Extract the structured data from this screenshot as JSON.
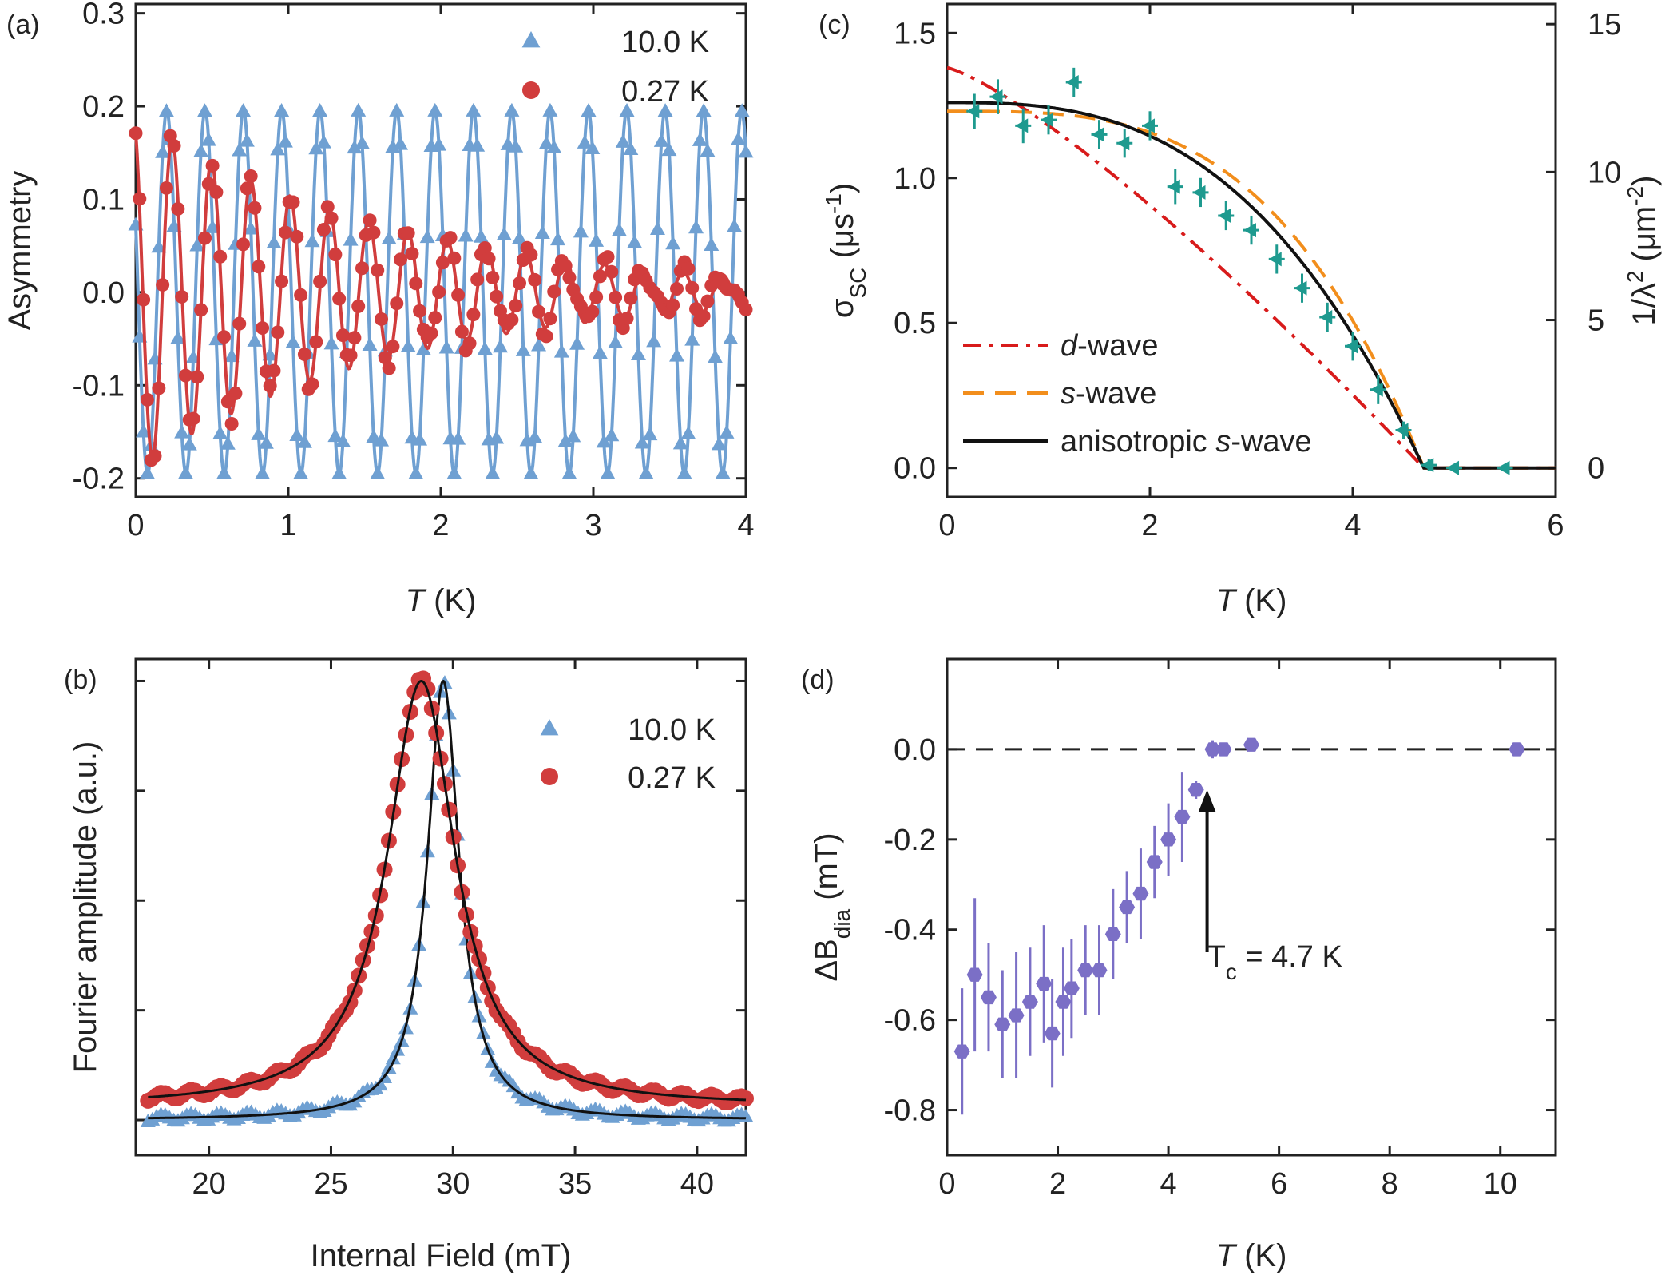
{
  "chart_data": [
    {
      "panel": "(a)",
      "type": "line",
      "xlabel_var": "T",
      "xlabel_unit": " (K)",
      "ylabel": "Asymmetry",
      "xlim": [
        0,
        4
      ],
      "ylim": [
        -0.22,
        0.31
      ],
      "xticks": [
        "0",
        "1",
        "2",
        "3",
        "4"
      ],
      "xtick_values": [
        0,
        1,
        2,
        3,
        4
      ],
      "yticks": [
        "-0.2",
        "-0.1",
        "0.0",
        "0.1",
        "0.2",
        "0.3"
      ],
      "ytick_values": [
        -0.2,
        -0.1,
        0.0,
        0.1,
        0.2,
        0.3
      ],
      "legend_position": "top-right",
      "series": [
        {
          "name": "10.0 K",
          "color": "#6fa0d2",
          "marker": "triangle",
          "model": "cosine",
          "amplitude": 0.195,
          "frequency_per_unit": 3.98,
          "phase": 1.19,
          "decay": 0.0,
          "x_range": [
            0,
            4
          ],
          "n_points": 160
        },
        {
          "name": "0.27 K",
          "color": "#d13d3d",
          "marker": "circle",
          "model": "damped_cosine",
          "amplitude": 0.19,
          "frequency_per_unit": 3.88,
          "phase": 0.45,
          "decay": 0.6,
          "x_range": [
            0,
            4
          ],
          "n_points": 160
        }
      ]
    },
    {
      "panel": "(b)",
      "type": "line",
      "xlabel": "Internal Field (mT)",
      "ylabel": "Fourier amplitude (a.u.)",
      "xlim": [
        17,
        42
      ],
      "ylim": [
        -0.08,
        1.05
      ],
      "xticks": [
        "20",
        "25",
        "30",
        "35",
        "40"
      ],
      "xtick_values": [
        20,
        25,
        30,
        35,
        40
      ],
      "ytick_values": [
        0,
        0.25,
        0.5,
        0.75,
        1.0
      ],
      "legend_position": "top-right",
      "series": [
        {
          "name": "10.0 K",
          "color": "#6fa0d2",
          "marker": "triangle",
          "model": "lorentzian",
          "center": 29.6,
          "width": 0.8,
          "baseline": 0.0,
          "peak": 1.0,
          "x_range": [
            17.5,
            42
          ],
          "n_points": 140
        },
        {
          "name": "0.27 K",
          "color": "#d13d3d",
          "marker": "circle",
          "model": "lorentzian",
          "center": 28.7,
          "width": 1.7,
          "baseline": 0.03,
          "peak": 1.0,
          "x_range": [
            17.5,
            42
          ],
          "n_points": 140
        }
      ],
      "fit_color": "#111111"
    },
    {
      "panel": "(c)",
      "type": "scatter",
      "xlabel_var": "T",
      "xlabel_unit": " (K)",
      "ylabel_left": "σSC (μs-1)",
      "ylabel_right": "1/λ2 (μm-2)",
      "xlim": [
        0,
        6
      ],
      "ylim": [
        -0.1,
        1.6
      ],
      "xticks": [
        "0",
        "2",
        "4",
        "6"
      ],
      "xtick_values": [
        0,
        2,
        4,
        6
      ],
      "yticks": [
        "0.0",
        "0.5",
        "1.0",
        "1.5"
      ],
      "ytick_values": [
        0.0,
        0.5,
        1.0,
        1.5
      ],
      "yticks_right": [
        "0",
        "5",
        "10",
        "15"
      ],
      "right_scale_factor": 9.8,
      "points": {
        "color": "#1e9a8f",
        "x": [
          0.27,
          0.5,
          0.75,
          1.0,
          1.25,
          1.5,
          1.75,
          2.0,
          2.25,
          2.5,
          2.75,
          3.0,
          3.25,
          3.5,
          3.75,
          4.0,
          4.25,
          4.5,
          4.75,
          5.0,
          5.5
        ],
        "y": [
          1.23,
          1.28,
          1.18,
          1.2,
          1.33,
          1.15,
          1.12,
          1.18,
          0.97,
          0.95,
          0.87,
          0.82,
          0.72,
          0.62,
          0.52,
          0.42,
          0.27,
          0.13,
          0.01,
          0.0,
          0.0
        ],
        "err": [
          0.06,
          0.06,
          0.06,
          0.05,
          0.05,
          0.05,
          0.05,
          0.05,
          0.06,
          0.05,
          0.05,
          0.05,
          0.05,
          0.05,
          0.05,
          0.05,
          0.05,
          0.03,
          0.02,
          0.01,
          0.01
        ]
      },
      "fits": [
        {
          "name": "d-wave",
          "prefix": "d",
          "suffix": "-wave",
          "color": "#d81b1b",
          "style": "dashdot",
          "model": "d",
          "s0": 1.38,
          "tc": 4.7
        },
        {
          "name": "s-wave",
          "prefix": "s",
          "suffix": "-wave",
          "color": "#f28e1c",
          "style": "dash",
          "model": "s",
          "s0": 1.23,
          "tc": 4.7
        },
        {
          "name": "anisotropic s-wave",
          "prefix": "anisotropic ",
          "italic": "s",
          "suffix": "-wave",
          "color": "#111111",
          "style": "solid",
          "model": "aniso",
          "s0": 1.26,
          "tc": 4.7
        }
      ],
      "legend_position": "bottom-left"
    },
    {
      "panel": "(d)",
      "type": "scatter",
      "xlabel_var": "T",
      "xlabel_unit": " (K)",
      "ylabel": "ΔBdia (mT)",
      "xlim": [
        0,
        11
      ],
      "ylim": [
        -0.9,
        0.2
      ],
      "xticks": [
        "0",
        "2",
        "4",
        "6",
        "8",
        "10"
      ],
      "xtick_values": [
        0,
        2,
        4,
        6,
        8,
        10
      ],
      "yticks": [
        "-0.8",
        "-0.6",
        "-0.4",
        "-0.2",
        "0.0"
      ],
      "ytick_values": [
        -0.8,
        -0.6,
        -0.4,
        -0.2,
        0.0
      ],
      "points": {
        "color": "#7b6fc6",
        "x": [
          0.27,
          0.5,
          0.75,
          1.0,
          1.25,
          1.5,
          1.75,
          1.9,
          2.1,
          2.25,
          2.5,
          2.75,
          3.0,
          3.25,
          3.5,
          3.75,
          4.0,
          4.25,
          4.5,
          4.8,
          5.0,
          5.5,
          10.3
        ],
        "y": [
          -0.67,
          -0.5,
          -0.55,
          -0.61,
          -0.59,
          -0.56,
          -0.52,
          -0.63,
          -0.56,
          -0.53,
          -0.49,
          -0.49,
          -0.41,
          -0.35,
          -0.32,
          -0.25,
          -0.2,
          -0.15,
          -0.09,
          0.0,
          0.0,
          0.01,
          0.0
        ],
        "err": [
          0.14,
          0.17,
          0.12,
          0.12,
          0.14,
          0.12,
          0.13,
          0.12,
          0.12,
          0.11,
          0.1,
          0.1,
          0.1,
          0.08,
          0.1,
          0.08,
          0.08,
          0.1,
          0.02,
          0.02,
          0.01,
          0.01,
          0.01
        ]
      },
      "reference_line_y": 0.0,
      "annotation": {
        "text": "T",
        "sub": "c",
        "rest": " = 4.7 K",
        "arrow_x": 4.7,
        "arrow_from_y": -0.45,
        "arrow_to_y": -0.09
      }
    }
  ]
}
